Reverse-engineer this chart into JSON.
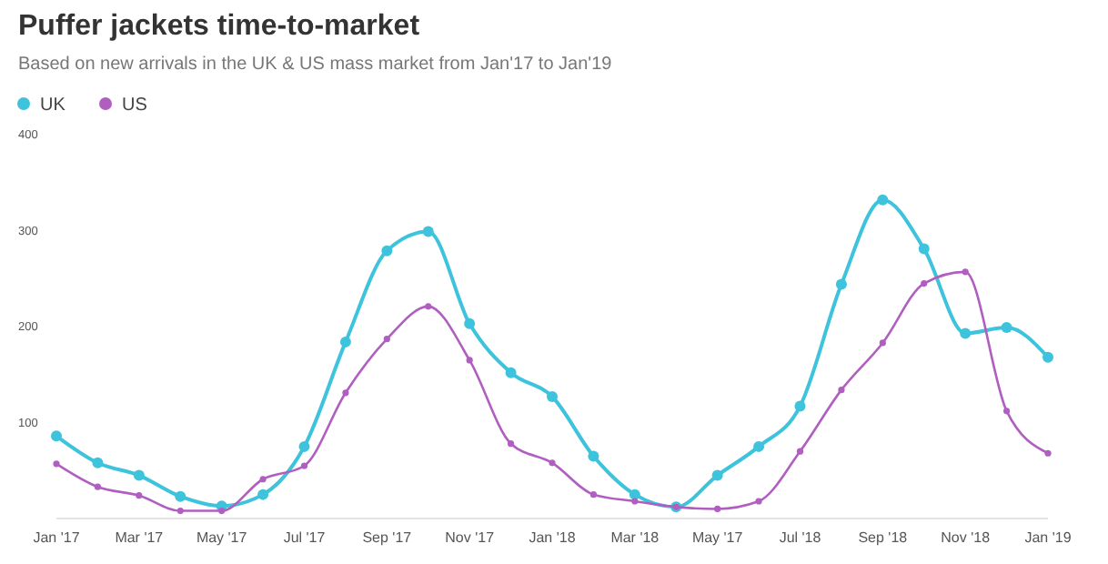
{
  "chart_data": {
    "type": "line",
    "title": "Puffer jackets time-to-market",
    "subtitle": "Based on new arrivals in the UK & US mass market from Jan'17 to Jan'19",
    "categories": [
      "Jan '17",
      null,
      "Mar '17",
      null,
      "May '17",
      null,
      "Jul '17",
      null,
      "Sep '17",
      null,
      "Nov '17",
      null,
      "Jan '18",
      null,
      "Mar '18",
      null,
      "May '17",
      null,
      "Jul '18",
      null,
      "Sep '18",
      null,
      "Nov '18",
      null,
      "Jan '19"
    ],
    "series": [
      {
        "name": "UK",
        "color": "#3ec3dc",
        "values": [
          86,
          58,
          45,
          23,
          13,
          25,
          75,
          184,
          279,
          299,
          203,
          152,
          127,
          65,
          25,
          12,
          45,
          75,
          117,
          244,
          332,
          281,
          193,
          199,
          168
        ]
      },
      {
        "name": "US",
        "color": "#b05fc0",
        "values": [
          57,
          33,
          24,
          8,
          8,
          41,
          55,
          131,
          187,
          221,
          165,
          78,
          58,
          25,
          18,
          12,
          10,
          18,
          70,
          134,
          183,
          245,
          257,
          112,
          68
        ]
      }
    ],
    "ylim": [
      0,
      400
    ],
    "yticks": [
      100,
      200,
      300,
      400
    ],
    "legend": "top left",
    "marker": "circle",
    "line_style": "solid"
  }
}
